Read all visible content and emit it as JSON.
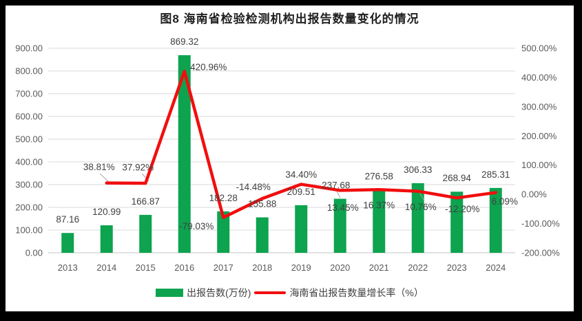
{
  "title": "图8 海南省检验检测机构出报告数量变化的情况",
  "colors": {
    "bar": "#0DA34F",
    "line": "#F10E0E",
    "grid": "#D9D9D9",
    "axis_line": "#C6C6C6",
    "tick_text": "#595959",
    "label_text": "#404040",
    "leader": "#A6A6A6",
    "frame": "#000000",
    "background": "#FFFFFF"
  },
  "legend": {
    "bar_label": "出报告数(万份)",
    "line_label": "海南省出报告数量增长率（%）"
  },
  "chart_data": {
    "type": "combo-bar-line",
    "title": "图8 海南省检验检测机构出报告数量变化的情况",
    "categories": [
      "2013",
      "2014",
      "2015",
      "2016",
      "2017",
      "2018",
      "2019",
      "2020",
      "2021",
      "2022",
      "2023",
      "2024"
    ],
    "series": [
      {
        "name": "出报告数(万份)",
        "type": "bar",
        "axis": "left",
        "color": "#0DA34F",
        "values": [
          87.16,
          120.99,
          166.87,
          869.32,
          182.28,
          155.88,
          209.51,
          237.68,
          276.58,
          306.33,
          268.94,
          285.31
        ],
        "labels": [
          "87.16",
          "120.99",
          "166.87",
          "869.32",
          "182.28",
          "155.88",
          "209.51",
          "237.68",
          "276.58",
          "306.33",
          "268.94",
          "285.31"
        ]
      },
      {
        "name": "海南省出报告数量增长率（%）",
        "type": "line",
        "axis": "right",
        "color": "#F10E0E",
        "values": [
          null,
          38.81,
          37.92,
          420.96,
          -79.03,
          -14.48,
          34.4,
          13.45,
          16.37,
          10.76,
          -12.2,
          6.09
        ],
        "labels": [
          null,
          "38.81%",
          "37.92%",
          "420.96%",
          "-79.03%",
          "-14.48%",
          "34.40%",
          "13.45%",
          "16.37%",
          "10.76%",
          "-12.20%",
          "6.09%"
        ]
      }
    ],
    "left_axis": {
      "min": 0,
      "max": 900,
      "step": 100,
      "ticks": [
        "0.00",
        "100.00",
        "200.00",
        "300.00",
        "400.00",
        "500.00",
        "600.00",
        "700.00",
        "800.00",
        "900.00"
      ]
    },
    "right_axis": {
      "min": -200,
      "max": 500,
      "step": 100,
      "ticks": [
        "-200.00%",
        "-100.00%",
        "0.00%",
        "100.00%",
        "200.00%",
        "300.00%",
        "400.00%",
        "500.00%"
      ]
    },
    "grid": true,
    "legend_position": "bottom"
  }
}
